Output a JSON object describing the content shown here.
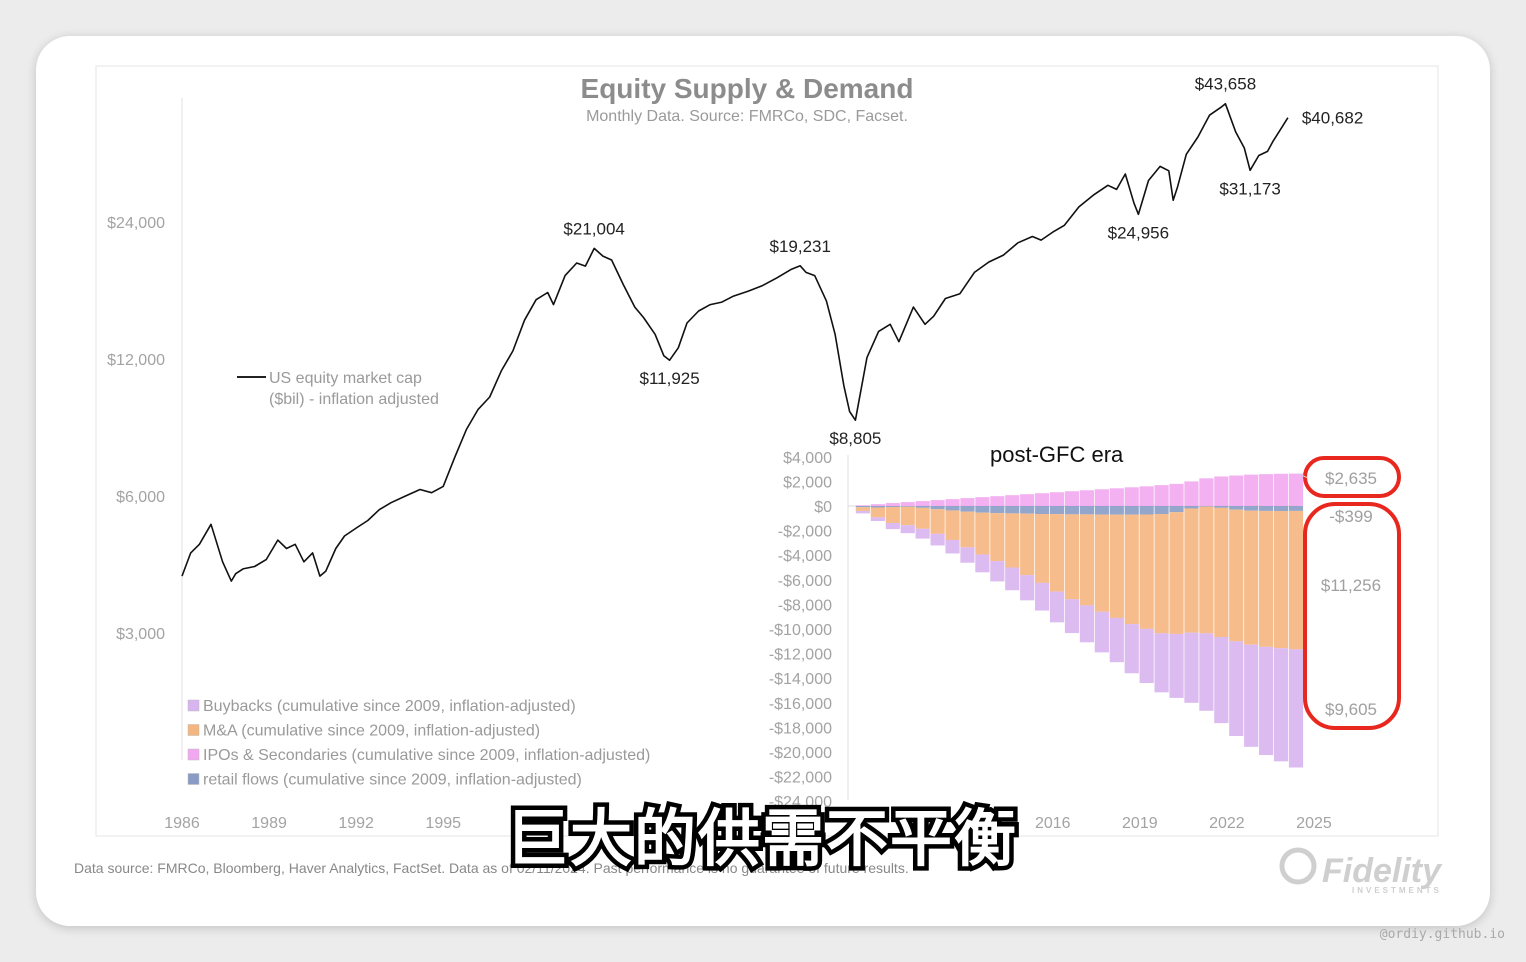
{
  "page": {
    "title": "Equity Supply & Demand",
    "subtitle": "Monthly Data. Source: FMRCo, SDC, Facset.",
    "footer": "Data source: FMRCo, Bloomberg, Haver Analytics, FactSet. Data as of 02/11/2024. Past performance is no guarantee of future results.",
    "logo": "Fidelity",
    "logo_sub": "INVESTMENTS",
    "caption": "巨大的供需不平衡",
    "watermark": "@ordiy.github.io"
  },
  "chart_data": [
    {
      "type": "line",
      "title": "Equity Supply & Demand",
      "subtitle": "Monthly Data. Source: FMRCo, SDC, Facset.",
      "yscale": "log",
      "ylim": [
        1800,
        44000
      ],
      "xlim": [
        1986,
        2026
      ],
      "y_ticks": [
        {
          "value": 3000,
          "label": "$3,000"
        },
        {
          "value": 6000,
          "label": "$6,000"
        },
        {
          "value": 12000,
          "label": "$12,000"
        },
        {
          "value": 24000,
          "label": "$24,000"
        }
      ],
      "x_ticks": [
        {
          "value": 1986,
          "label": "1986"
        },
        {
          "value": 1989,
          "label": "1989"
        },
        {
          "value": 1992,
          "label": "1992"
        },
        {
          "value": 1995,
          "label": "1995"
        },
        {
          "value": 2016,
          "label": "2016"
        },
        {
          "value": 2019,
          "label": "2019"
        },
        {
          "value": 2022,
          "label": "2022"
        },
        {
          "value": 2025,
          "label": "2025"
        }
      ],
      "legend": {
        "line1": "US equity market cap",
        "line2": "($bil) - inflation adjusted"
      },
      "series": [
        {
          "name": "US equity market cap ($bil) - inflation adjusted",
          "x": [
            1986.0,
            1986.3,
            1986.6,
            1987.0,
            1987.4,
            1987.7,
            1987.85,
            1988.1,
            1988.5,
            1988.9,
            1989.3,
            1989.6,
            1989.9,
            1990.2,
            1990.5,
            1990.75,
            1990.95,
            1991.3,
            1991.6,
            1992.0,
            1992.4,
            1992.8,
            1993.2,
            1993.7,
            1994.2,
            1994.6,
            1995.0,
            1995.4,
            1995.8,
            1996.2,
            1996.6,
            1997.0,
            1997.4,
            1997.8,
            1998.2,
            1998.6,
            1998.8,
            1999.2,
            1999.6,
            1999.9,
            2000.2,
            2000.5,
            2000.8,
            2001.2,
            2001.6,
            2001.9,
            2002.3,
            2002.6,
            2002.8,
            2003.1,
            2003.4,
            2003.8,
            2004.2,
            2004.6,
            2005.0,
            2005.5,
            2006.0,
            2006.5,
            2007.0,
            2007.3,
            2007.5,
            2007.8,
            2008.2,
            2008.5,
            2008.8,
            2009.0,
            2009.2,
            2009.6,
            2010.0,
            2010.4,
            2010.7,
            2011.2,
            2011.6,
            2011.9,
            2012.3,
            2012.8,
            2013.3,
            2013.8,
            2014.3,
            2014.8,
            2015.3,
            2015.6,
            2016.0,
            2016.4,
            2016.9,
            2017.4,
            2017.9,
            2018.2,
            2018.5,
            2018.8,
            2018.95,
            2019.3,
            2019.7,
            2020.0,
            2020.15,
            2020.3,
            2020.6,
            2021.0,
            2021.4,
            2021.8,
            2021.95,
            2022.3,
            2022.6,
            2022.8,
            2023.1,
            2023.4,
            2023.6,
            2023.8,
            2024.1
          ],
          "y": [
            4000,
            4500,
            4700,
            5200,
            4300,
            3900,
            4050,
            4150,
            4200,
            4350,
            4800,
            4600,
            4700,
            4300,
            4500,
            4000,
            4100,
            4600,
            4900,
            5100,
            5300,
            5600,
            5800,
            6000,
            6200,
            6100,
            6300,
            7300,
            8400,
            9300,
            9900,
            11300,
            12500,
            14600,
            16200,
            16800,
            15800,
            18300,
            19500,
            19200,
            21004,
            20200,
            19800,
            17500,
            15600,
            14800,
            13600,
            12200,
            11925,
            12700,
            14400,
            15300,
            15800,
            16000,
            16500,
            16900,
            17400,
            18100,
            18900,
            19231,
            18600,
            18300,
            16100,
            13600,
            10500,
            9200,
            8805,
            12100,
            13800,
            14300,
            13100,
            15600,
            14300,
            14900,
            16300,
            16700,
            18600,
            19600,
            20300,
            21600,
            22300,
            21900,
            22800,
            23600,
            25900,
            27500,
            28900,
            28300,
            30600,
            26400,
            24956,
            29600,
            31800,
            31100,
            26800,
            28700,
            33800,
            36900,
            41200,
            42900,
            43658,
            37900,
            34900,
            31173,
            33600,
            34300,
            36200,
            37900,
            40682
          ]
        }
      ],
      "annotations": [
        {
          "x": 2000.2,
          "y": 21004,
          "label": "$21,004"
        },
        {
          "x": 2002.8,
          "y": 11925,
          "label": "$11,925"
        },
        {
          "x": 2007.3,
          "y": 19231,
          "label": "$19,231"
        },
        {
          "x": 2009.2,
          "y": 8805,
          "label": "$8,805"
        },
        {
          "x": 2018.95,
          "y": 24956,
          "label": "$24,956"
        },
        {
          "x": 2021.95,
          "y": 43658,
          "label": "$43,658"
        },
        {
          "x": 2022.8,
          "y": 31173,
          "label": "$31,173"
        },
        {
          "x": 2024.1,
          "y": 40682,
          "label": "$40,682"
        }
      ]
    },
    {
      "type": "bar",
      "title": "post-GFC era",
      "stacked": true,
      "ylim": [
        -24000,
        4000
      ],
      "y_ticks": [
        {
          "value": 4000,
          "label": "$4,000"
        },
        {
          "value": 2000,
          "label": "$2,000"
        },
        {
          "value": 0,
          "label": "$0"
        },
        {
          "value": -2000,
          "label": "-$2,000"
        },
        {
          "value": -4000,
          "label": "-$4,000"
        },
        {
          "value": -6000,
          "label": "-$6,000"
        },
        {
          "value": -8000,
          "label": "-$8,000"
        },
        {
          "value": -10000,
          "label": "-$10,000"
        },
        {
          "value": -12000,
          "label": "-$12,000"
        },
        {
          "value": -14000,
          "label": "-$14,000"
        },
        {
          "value": -16000,
          "label": "-$16,000"
        },
        {
          "value": -18000,
          "label": "-$18,000"
        },
        {
          "value": -20000,
          "label": "-$20,000"
        },
        {
          "value": -22000,
          "label": "-$22,000"
        },
        {
          "value": -24000,
          "label": "-$24,000"
        }
      ],
      "x": [
        2009.0,
        2009.5,
        2010.0,
        2010.5,
        2011.0,
        2011.5,
        2012.0,
        2012.5,
        2013.0,
        2013.5,
        2014.0,
        2014.5,
        2015.0,
        2015.5,
        2016.0,
        2016.5,
        2017.0,
        2017.5,
        2018.0,
        2018.5,
        2019.0,
        2019.5,
        2020.0,
        2020.5,
        2021.0,
        2021.5,
        2022.0,
        2022.5,
        2023.0,
        2023.5,
        2024.0
      ],
      "series": [
        {
          "name": "IPOs & Secondaries (cumulative since 2009, inflation-adjusted)",
          "color": "#f2a8f0",
          "values": [
            0,
            60,
            150,
            240,
            320,
            400,
            480,
            560,
            640,
            720,
            800,
            880,
            960,
            1040,
            1120,
            1200,
            1280,
            1360,
            1440,
            1520,
            1600,
            1700,
            1800,
            2000,
            2250,
            2400,
            2480,
            2550,
            2590,
            2620,
            2635
          ]
        },
        {
          "name": "retail flows (cumulative since 2009, inflation-adjusted)",
          "color": "#8a9cc6",
          "values": [
            0,
            -100,
            -120,
            -80,
            -60,
            -150,
            -260,
            -360,
            -460,
            -540,
            -580,
            -600,
            -620,
            -650,
            -660,
            -680,
            -680,
            -700,
            -700,
            -700,
            -690,
            -650,
            -500,
            -200,
            -50,
            -150,
            -300,
            -380,
            -400,
            -410,
            -399
          ]
        },
        {
          "name": "M&A (cumulative since 2009, inflation-adjusted)",
          "color": "#f5b57e",
          "values": [
            0,
            -300,
            -800,
            -1300,
            -1500,
            -1700,
            -2000,
            -2400,
            -2900,
            -3400,
            -3900,
            -4400,
            -5000,
            -5600,
            -6300,
            -6900,
            -7400,
            -7900,
            -8400,
            -8900,
            -9300,
            -9700,
            -9900,
            -10100,
            -10300,
            -10500,
            -10700,
            -10900,
            -11050,
            -11150,
            -11256
          ]
        },
        {
          "name": "Buybacks (cumulative since 2009, inflation-adjusted)",
          "color": "#d8b4f0",
          "values": [
            0,
            -200,
            -300,
            -500,
            -650,
            -800,
            -950,
            -1100,
            -1250,
            -1450,
            -1650,
            -1850,
            -2050,
            -2250,
            -2500,
            -2750,
            -3000,
            -3300,
            -3600,
            -4000,
            -4400,
            -4800,
            -5200,
            -5700,
            -6300,
            -7000,
            -7700,
            -8300,
            -8800,
            -9200,
            -9605
          ]
        }
      ],
      "end_labels": [
        {
          "label": "$2,635",
          "circled": true
        },
        {
          "label": "-$399",
          "circled": false
        },
        {
          "label": "$11,256",
          "circled": false
        },
        {
          "label": "$9,605",
          "circled": false
        }
      ],
      "highlight_color": "#e8281e"
    }
  ],
  "legend_bottom": [
    {
      "label": "Buybacks (cumulative since 2009, inflation-adjusted)",
      "color": "#d8b4f0"
    },
    {
      "label": "M&A (cumulative since 2009, inflation-adjusted)",
      "color": "#f5b57e"
    },
    {
      "label": "IPOs & Secondaries (cumulative since 2009, inflation-adjusted)",
      "color": "#f2a8f0"
    },
    {
      "label": "retail flows (cumulative since 2009, inflation-adjusted)",
      "color": "#8a9cc6"
    }
  ]
}
